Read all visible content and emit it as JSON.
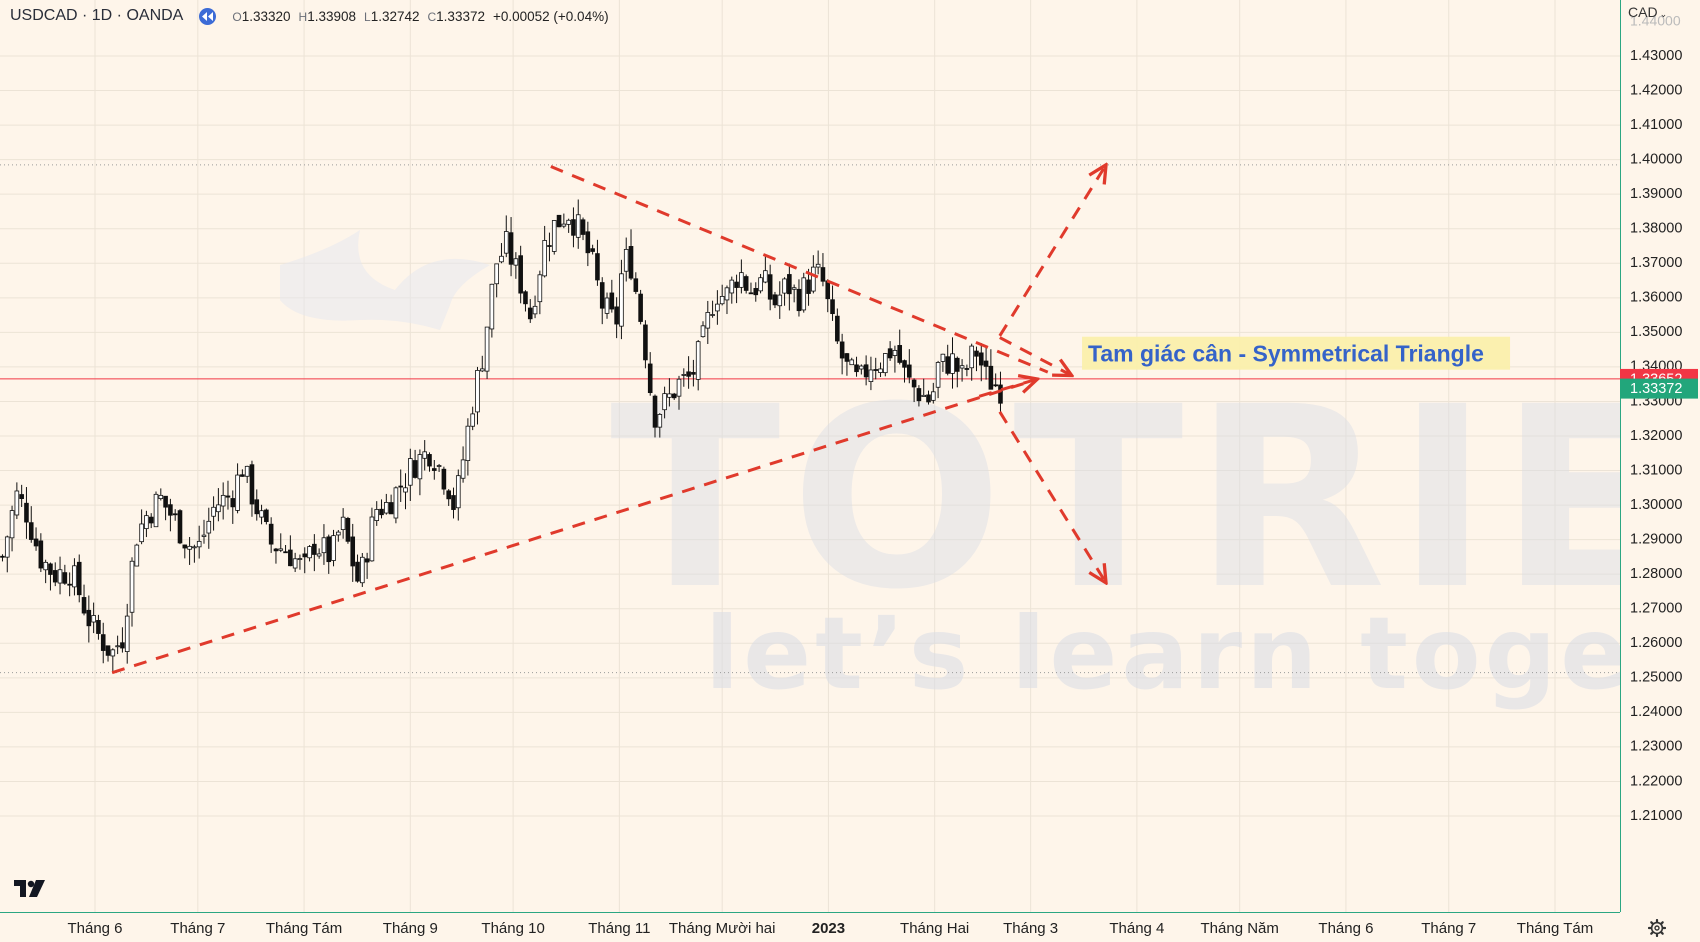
{
  "header": {
    "symbol": "USDCAD · 1D · OANDA",
    "open_label": "O",
    "open": "1.33320",
    "high_label": "H",
    "high": "1.33908",
    "low_label": "L",
    "low": "1.32742",
    "close_label": "C",
    "close": "1.33372",
    "change": "+0.00052 (+0.04%)"
  },
  "currency_selector": "CAD",
  "icons": {
    "rewind": "rewind-icon",
    "logo": "tradingview-logo-icon",
    "settings": "gear-icon",
    "dropdown": "chevron-down-icon"
  },
  "colors": {
    "background": "#fef5ea",
    "candle": "#111111",
    "trendline": "#e03a2c",
    "price_badge_red": "#f23645",
    "price_badge_green": "#22a67b",
    "annotation_text": "#3563c9",
    "annotation_bg": "#fbf0a8",
    "watermark": "#d9dde6"
  },
  "watermark": {
    "brand": "TOTRIEU",
    "tagline": "let’s learn together"
  },
  "chart_data": {
    "type": "candlestick",
    "symbol": "USDCAD",
    "interval": "1D",
    "source": "OANDA",
    "ylim": [
      1.203,
      1.443
    ],
    "y_ticks": [
      "1.43000",
      "1.42000",
      "1.41000",
      "1.40000",
      "1.39000",
      "1.38000",
      "1.37000",
      "1.36000",
      "1.35000",
      "1.34000",
      "1.33000",
      "1.32000",
      "1.31000",
      "1.30000",
      "1.29000",
      "1.28000",
      "1.27000",
      "1.26000",
      "1.25000",
      "1.24000",
      "1.23000",
      "1.22000",
      "1.21000"
    ],
    "x_ticks": [
      {
        "label": "Tháng 6",
        "date": "2022-06-01"
      },
      {
        "label": "Tháng 7",
        "date": "2022-07-01"
      },
      {
        "label": "Tháng Tám",
        "date": "2022-08-01"
      },
      {
        "label": "Tháng 9",
        "date": "2022-09-01"
      },
      {
        "label": "Tháng 10",
        "date": "2022-10-01"
      },
      {
        "label": "Tháng 11",
        "date": "2022-11-01"
      },
      {
        "label": "Tháng Mười hai",
        "date": "2022-12-01"
      },
      {
        "label": "2023",
        "date": "2023-01-01",
        "bold": true
      },
      {
        "label": "Tháng Hai",
        "date": "2023-02-01"
      },
      {
        "label": "Tháng 3",
        "date": "2023-03-01"
      },
      {
        "label": "Tháng 4",
        "date": "2023-04-01"
      },
      {
        "label": "Tháng Năm",
        "date": "2023-05-01"
      },
      {
        "label": "Tháng 6",
        "date": "2023-06-01"
      },
      {
        "label": "Tháng 7",
        "date": "2023-07-01"
      },
      {
        "label": "Tháng Tám",
        "date": "2023-08-01"
      }
    ],
    "close_path": [
      [
        "2022-05-05",
        1.285
      ],
      [
        "2022-05-09",
        1.303
      ],
      [
        "2022-05-12",
        1.298
      ],
      [
        "2022-05-16",
        1.285
      ],
      [
        "2022-05-20",
        1.28
      ],
      [
        "2022-05-25",
        1.281
      ],
      [
        "2022-05-31",
        1.265
      ],
      [
        "2022-06-06",
        1.257
      ],
      [
        "2022-06-09",
        1.262
      ],
      [
        "2022-06-13",
        1.291
      ],
      [
        "2022-06-16",
        1.297
      ],
      [
        "2022-06-20",
        1.302
      ],
      [
        "2022-06-24",
        1.296
      ],
      [
        "2022-06-28",
        1.289
      ],
      [
        "2022-07-01",
        1.287
      ],
      [
        "2022-07-06",
        1.3
      ],
      [
        "2022-07-11",
        1.303
      ],
      [
        "2022-07-14",
        1.311
      ],
      [
        "2022-07-19",
        1.297
      ],
      [
        "2022-07-22",
        1.289
      ],
      [
        "2022-07-27",
        1.287
      ],
      [
        "2022-08-01",
        1.281
      ],
      [
        "2022-08-04",
        1.289
      ],
      [
        "2022-08-09",
        1.285
      ],
      [
        "2022-08-12",
        1.295
      ],
      [
        "2022-08-17",
        1.277
      ],
      [
        "2022-08-22",
        1.299
      ],
      [
        "2022-08-25",
        1.3
      ],
      [
        "2022-08-30",
        1.307
      ],
      [
        "2022-09-02",
        1.312
      ],
      [
        "2022-09-07",
        1.316
      ],
      [
        "2022-09-12",
        1.306
      ],
      [
        "2022-09-14",
        1.299
      ],
      [
        "2022-09-19",
        1.329
      ],
      [
        "2022-09-22",
        1.343
      ],
      [
        "2022-09-26",
        1.37
      ],
      [
        "2022-09-29",
        1.375
      ],
      [
        "2022-10-03",
        1.365
      ],
      [
        "2022-10-06",
        1.355
      ],
      [
        "2022-10-10",
        1.375
      ],
      [
        "2022-10-13",
        1.381
      ],
      [
        "2022-10-17",
        1.385
      ],
      [
        "2022-10-20",
        1.38
      ],
      [
        "2022-10-24",
        1.37
      ],
      [
        "2022-10-27",
        1.358
      ],
      [
        "2022-10-31",
        1.352
      ],
      [
        "2022-11-02",
        1.37
      ],
      [
        "2022-11-04",
        1.372
      ],
      [
        "2022-11-08",
        1.35
      ],
      [
        "2022-11-11",
        1.326
      ],
      [
        "2022-11-15",
        1.33
      ],
      [
        "2022-11-18",
        1.335
      ],
      [
        "2022-11-22",
        1.337
      ],
      [
        "2022-11-25",
        1.346
      ],
      [
        "2022-11-29",
        1.362
      ],
      [
        "2022-12-02",
        1.36
      ],
      [
        "2022-12-06",
        1.368
      ],
      [
        "2022-12-09",
        1.362
      ],
      [
        "2022-12-13",
        1.365
      ],
      [
        "2022-12-16",
        1.358
      ],
      [
        "2022-12-20",
        1.364
      ],
      [
        "2022-12-23",
        1.36
      ],
      [
        "2022-12-28",
        1.367
      ],
      [
        "2022-12-30",
        1.366
      ],
      [
        "2023-01-03",
        1.348
      ],
      [
        "2023-01-06",
        1.34
      ],
      [
        "2023-01-10",
        1.335
      ],
      [
        "2023-01-13",
        1.341
      ],
      [
        "2023-01-17",
        1.342
      ],
      [
        "2023-01-20",
        1.346
      ],
      [
        "2023-01-24",
        1.336
      ],
      [
        "2023-01-27",
        1.333
      ],
      [
        "2023-01-31",
        1.33
      ],
      [
        "2023-02-02",
        1.34
      ],
      [
        "2023-02-06",
        1.342
      ],
      [
        "2023-02-09",
        1.337
      ],
      [
        "2023-02-13",
        1.345
      ],
      [
        "2023-02-16",
        1.337
      ],
      [
        "2023-02-20",
        1.334
      ],
      [
        "2023-02-21",
        1.3337
      ]
    ],
    "dotted_levels": [
      1.3985,
      1.2515
    ],
    "price_labels": [
      {
        "value": 1.33652,
        "text": "1.33652",
        "color": "red"
      },
      {
        "value": 1.33372,
        "text": "1.33372",
        "color": "green"
      }
    ],
    "trendlines": [
      {
        "name": "upper",
        "from": [
          "2022-10-12",
          1.398
        ],
        "to": [
          "2023-03-06",
          1.3385
        ],
        "style": "dashed"
      },
      {
        "name": "lower",
        "from": [
          "2022-06-06",
          1.2515
        ],
        "to": [
          "2023-02-28",
          1.3355
        ],
        "style": "dashed"
      },
      {
        "name": "breakout-up",
        "from": [
          "2023-02-20",
          1.349
        ],
        "to": [
          "2023-03-23",
          1.3985
        ],
        "style": "dashed-arrow"
      },
      {
        "name": "breakdown",
        "from": [
          "2023-02-20",
          1.327
        ],
        "to": [
          "2023-03-23",
          1.2775
        ],
        "style": "dashed-arrow"
      },
      {
        "name": "upper-projection",
        "from": [
          "2023-02-20",
          1.3485
        ],
        "to": [
          "2023-03-13",
          1.3375
        ],
        "style": "dashed-arrow"
      },
      {
        "name": "lower-projection",
        "from": [
          "2023-02-14",
          1.3315
        ],
        "to": [
          "2023-03-03",
          1.3365
        ],
        "style": "dashed-arrow"
      }
    ],
    "annotation": {
      "text": "Tam giác cân - Symmetrical Triangle",
      "at": [
        "2023-03-16",
        1.3444
      ]
    }
  }
}
